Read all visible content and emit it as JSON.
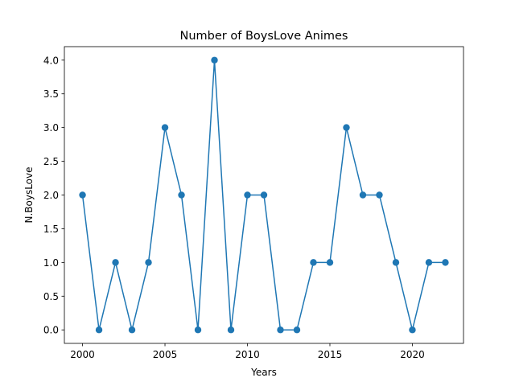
{
  "chart_data": {
    "type": "line",
    "title": "Number of BoysLove Animes",
    "xlabel": "Years",
    "ylabel": "N.BoysLove",
    "x": [
      2000,
      2001,
      2002,
      2003,
      2004,
      2005,
      2006,
      2007,
      2008,
      2009,
      2010,
      2011,
      2012,
      2013,
      2014,
      2015,
      2016,
      2017,
      2018,
      2019,
      2020,
      2021,
      2022
    ],
    "series": [
      {
        "values": [
          2,
          0,
          1,
          0,
          1,
          3,
          2,
          0,
          4,
          0,
          2,
          2,
          0,
          0,
          1,
          1,
          3,
          2,
          2,
          1,
          0,
          1,
          1
        ],
        "color": "#1f77b4",
        "marker": "circle"
      }
    ],
    "xlim": [
      1998.9,
      2023.1
    ],
    "ylim": [
      -0.2,
      4.2
    ],
    "xticks": [
      2000,
      2005,
      2010,
      2015,
      2020
    ],
    "yticks": [
      0.0,
      0.5,
      1.0,
      1.5,
      2.0,
      2.5,
      3.0,
      3.5,
      4.0
    ],
    "xtick_labels": [
      "2000",
      "2005",
      "2010",
      "2015",
      "2020"
    ],
    "ytick_labels": [
      "0.0",
      "0.5",
      "1.0",
      "1.5",
      "2.0",
      "2.5",
      "3.0",
      "3.5",
      "4.0"
    ],
    "grid": false,
    "legend": "none"
  }
}
